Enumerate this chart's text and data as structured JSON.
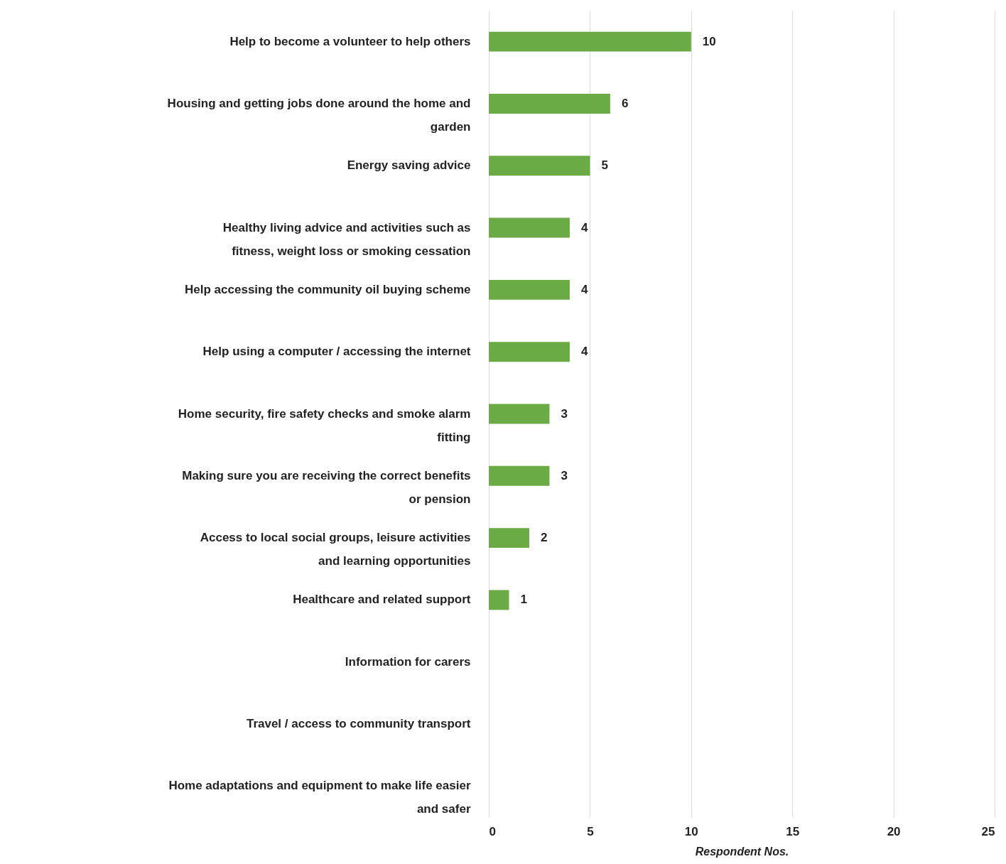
{
  "chart_data": {
    "type": "bar",
    "orientation": "horizontal",
    "xlabel": "Respondent Nos.",
    "categories": [
      "Help to become a volunteer to help others",
      "Housing and getting jobs done around the home and garden",
      "Energy saving advice",
      "Healthy living advice and activities such as fitness, weight loss or smoking cessation",
      "Help accessing the community oil buying scheme",
      "Help using a computer / accessing the internet",
      "Home security, fire safety checks and smoke alarm fitting",
      "Making sure you are receiving the correct benefits or pension",
      "Access to local social groups, leisure activities and learning opportunities",
      "Healthcare and related support",
      "Information for carers",
      "Travel / access to community transport",
      "Home adaptations and equipment to make life easier and safer"
    ],
    "values": [
      10,
      6,
      5,
      4,
      4,
      4,
      3,
      3,
      2,
      1,
      0,
      0,
      0
    ],
    "value_labels": [
      "10",
      "6",
      "5",
      "4",
      "4",
      "4",
      "3",
      "3",
      "2",
      "1",
      null,
      null,
      null
    ],
    "color": "#6aab45",
    "xlim": [
      0,
      25
    ],
    "xticks": [
      0,
      5,
      10,
      15,
      20,
      25
    ],
    "grid": "x"
  }
}
